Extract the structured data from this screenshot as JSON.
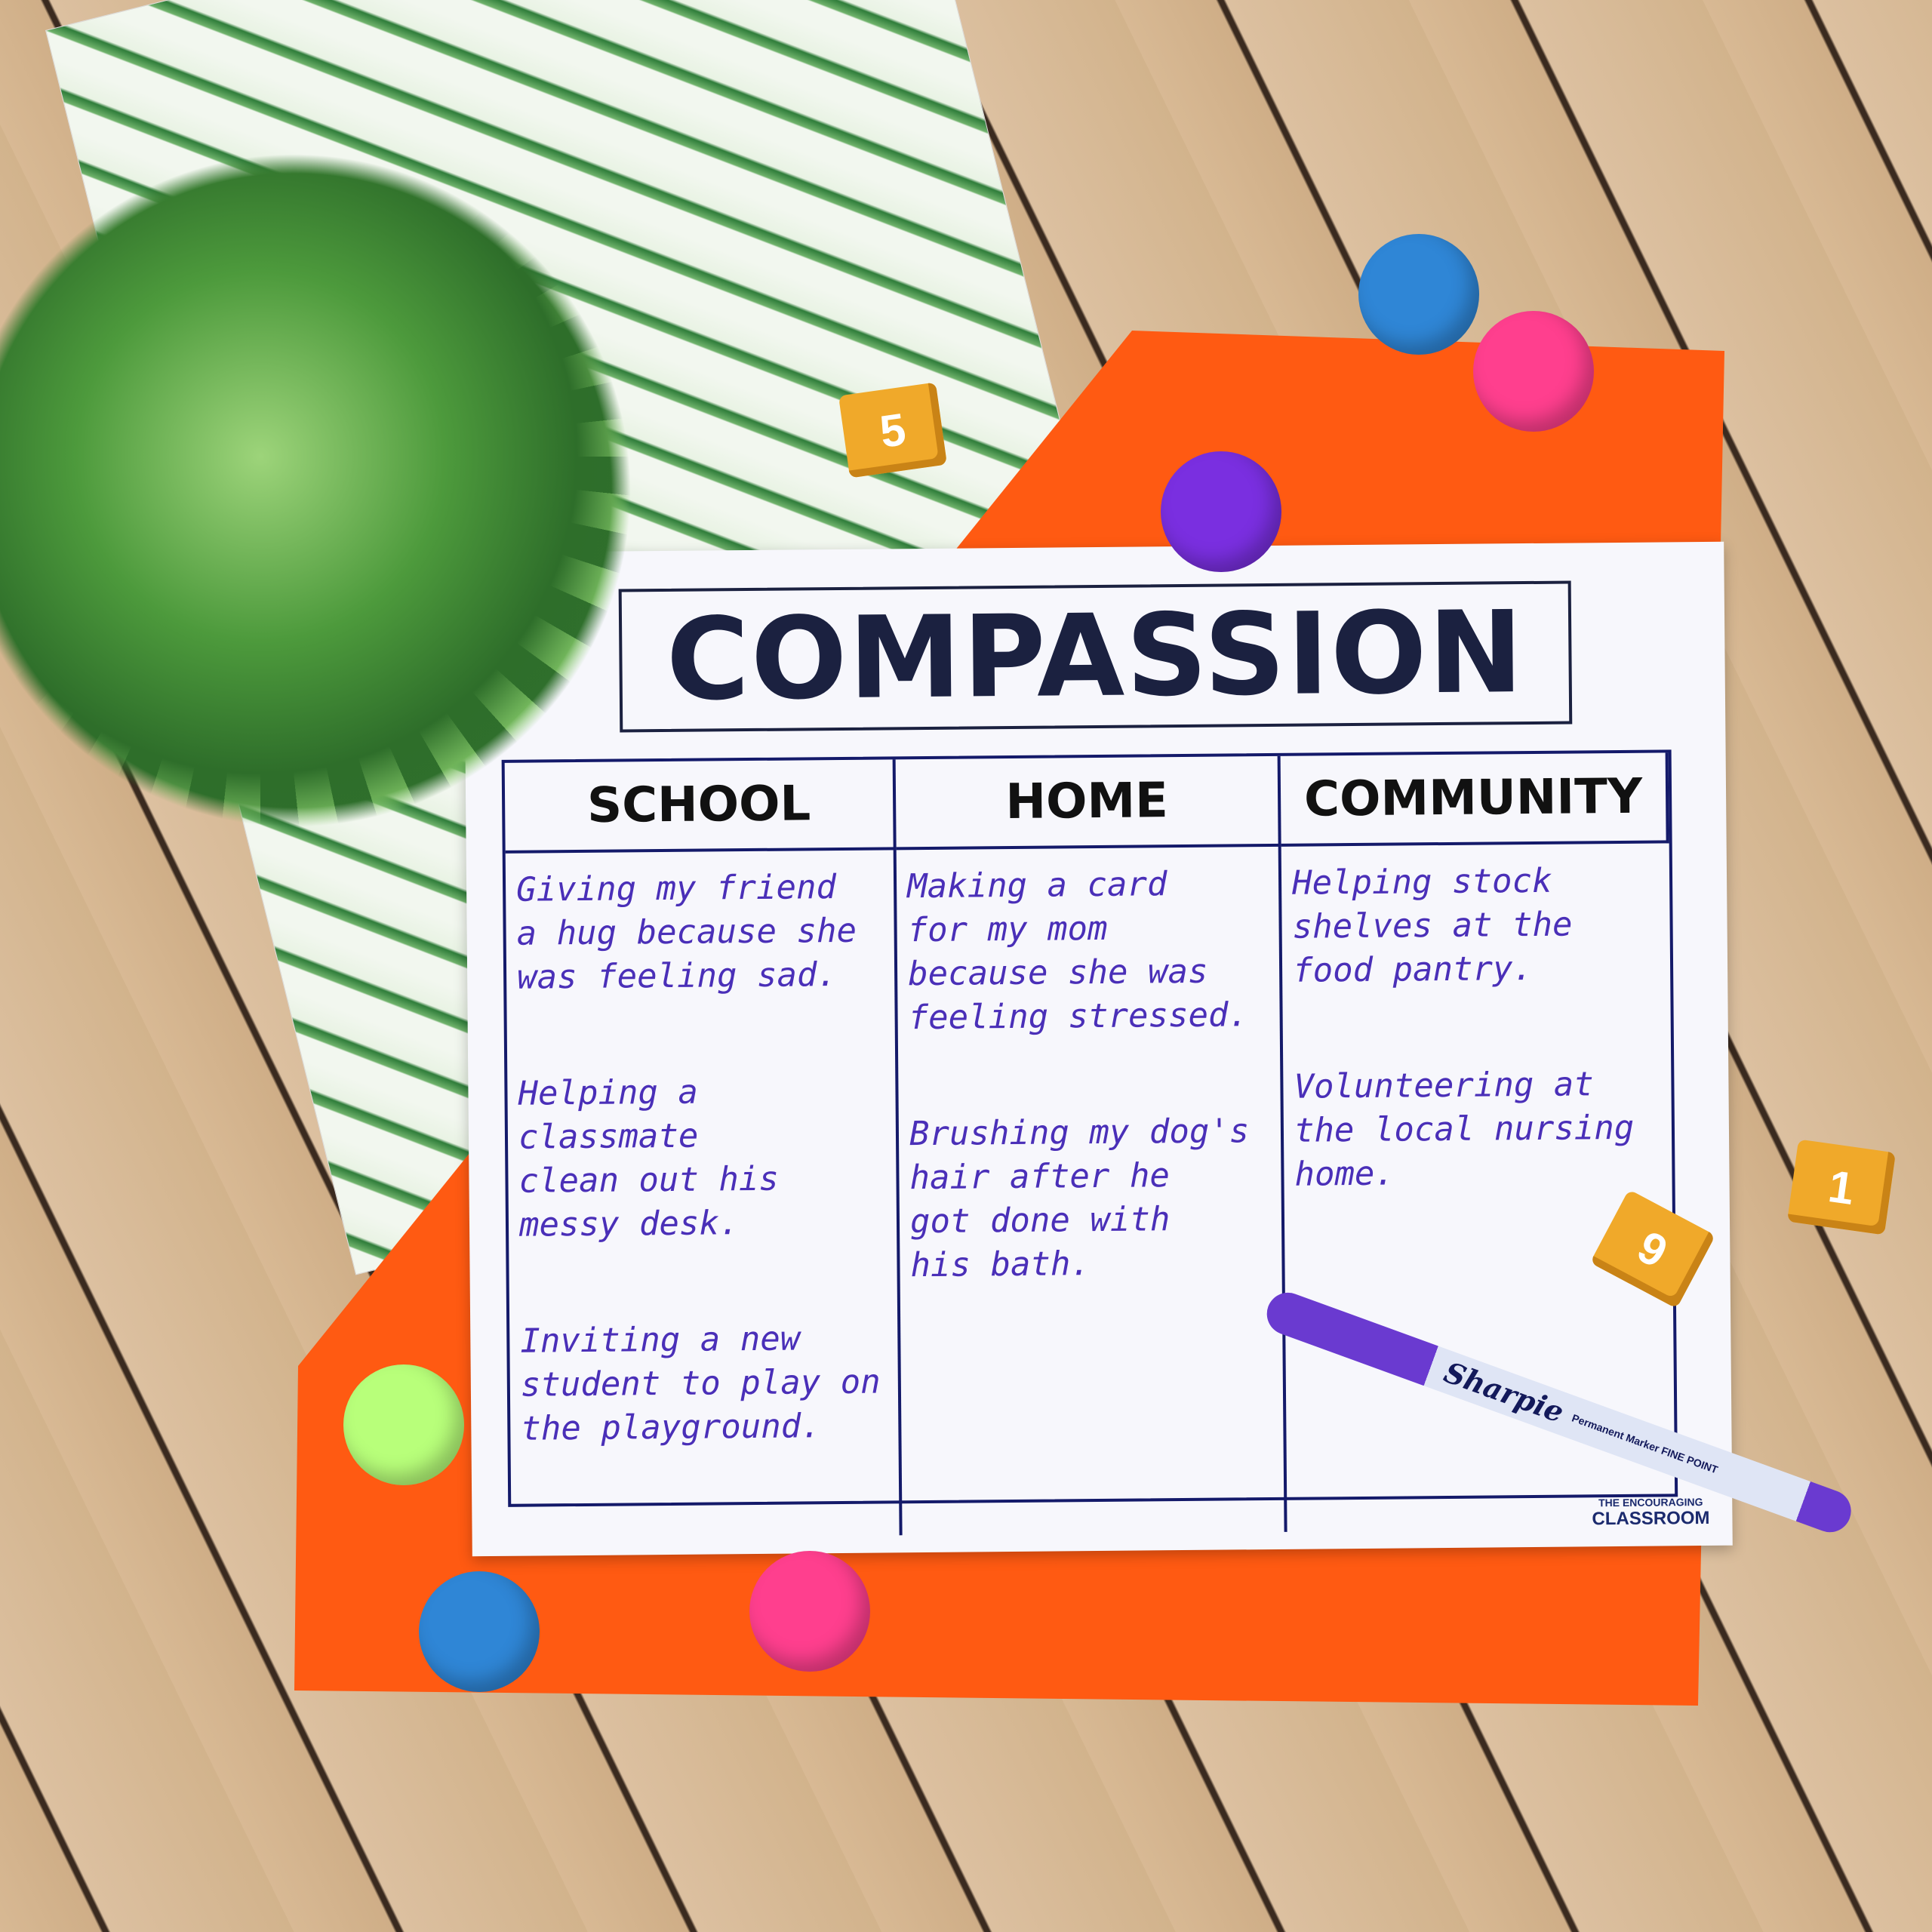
{
  "worksheet": {
    "title": "COMPASSION",
    "columns": [
      {
        "header": "SCHOOL",
        "entries": [
          "Giving my friend\na hug because she\nwas feeling sad.",
          "Helping a classmate\nclean out his\nmessy desk.",
          "Inviting a new\nstudent to play on\nthe playground."
        ]
      },
      {
        "header": "HOME",
        "entries": [
          "Making a card\nfor my mom\nbecause she was\nfeeling stressed.",
          "Brushing my dog's\nhair after he\ngot done with\nhis bath."
        ]
      },
      {
        "header": "COMMUNITY",
        "entries": [
          "Helping stock\nshelves at the\nfood pantry.",
          "Volunteering at\nthe local nursing\nhome."
        ]
      }
    ],
    "logo": {
      "line1": "THE ENCOURAGING",
      "line2": "CLASSROOM"
    }
  },
  "marker": {
    "brand": "Sharpie",
    "label": "Permanent Marker  FINE POINT",
    "color": "#6a3ad0"
  },
  "dice": [
    "5",
    "1",
    "9"
  ],
  "pom_colors": [
    "#2f86d6",
    "#ff3f8e",
    "#7a2fe0",
    "#b8ff7a",
    "#2f86d6",
    "#ff3f8e"
  ],
  "colors": {
    "ink": "#4a2fb8",
    "orange_paper": "#ff5a12"
  }
}
